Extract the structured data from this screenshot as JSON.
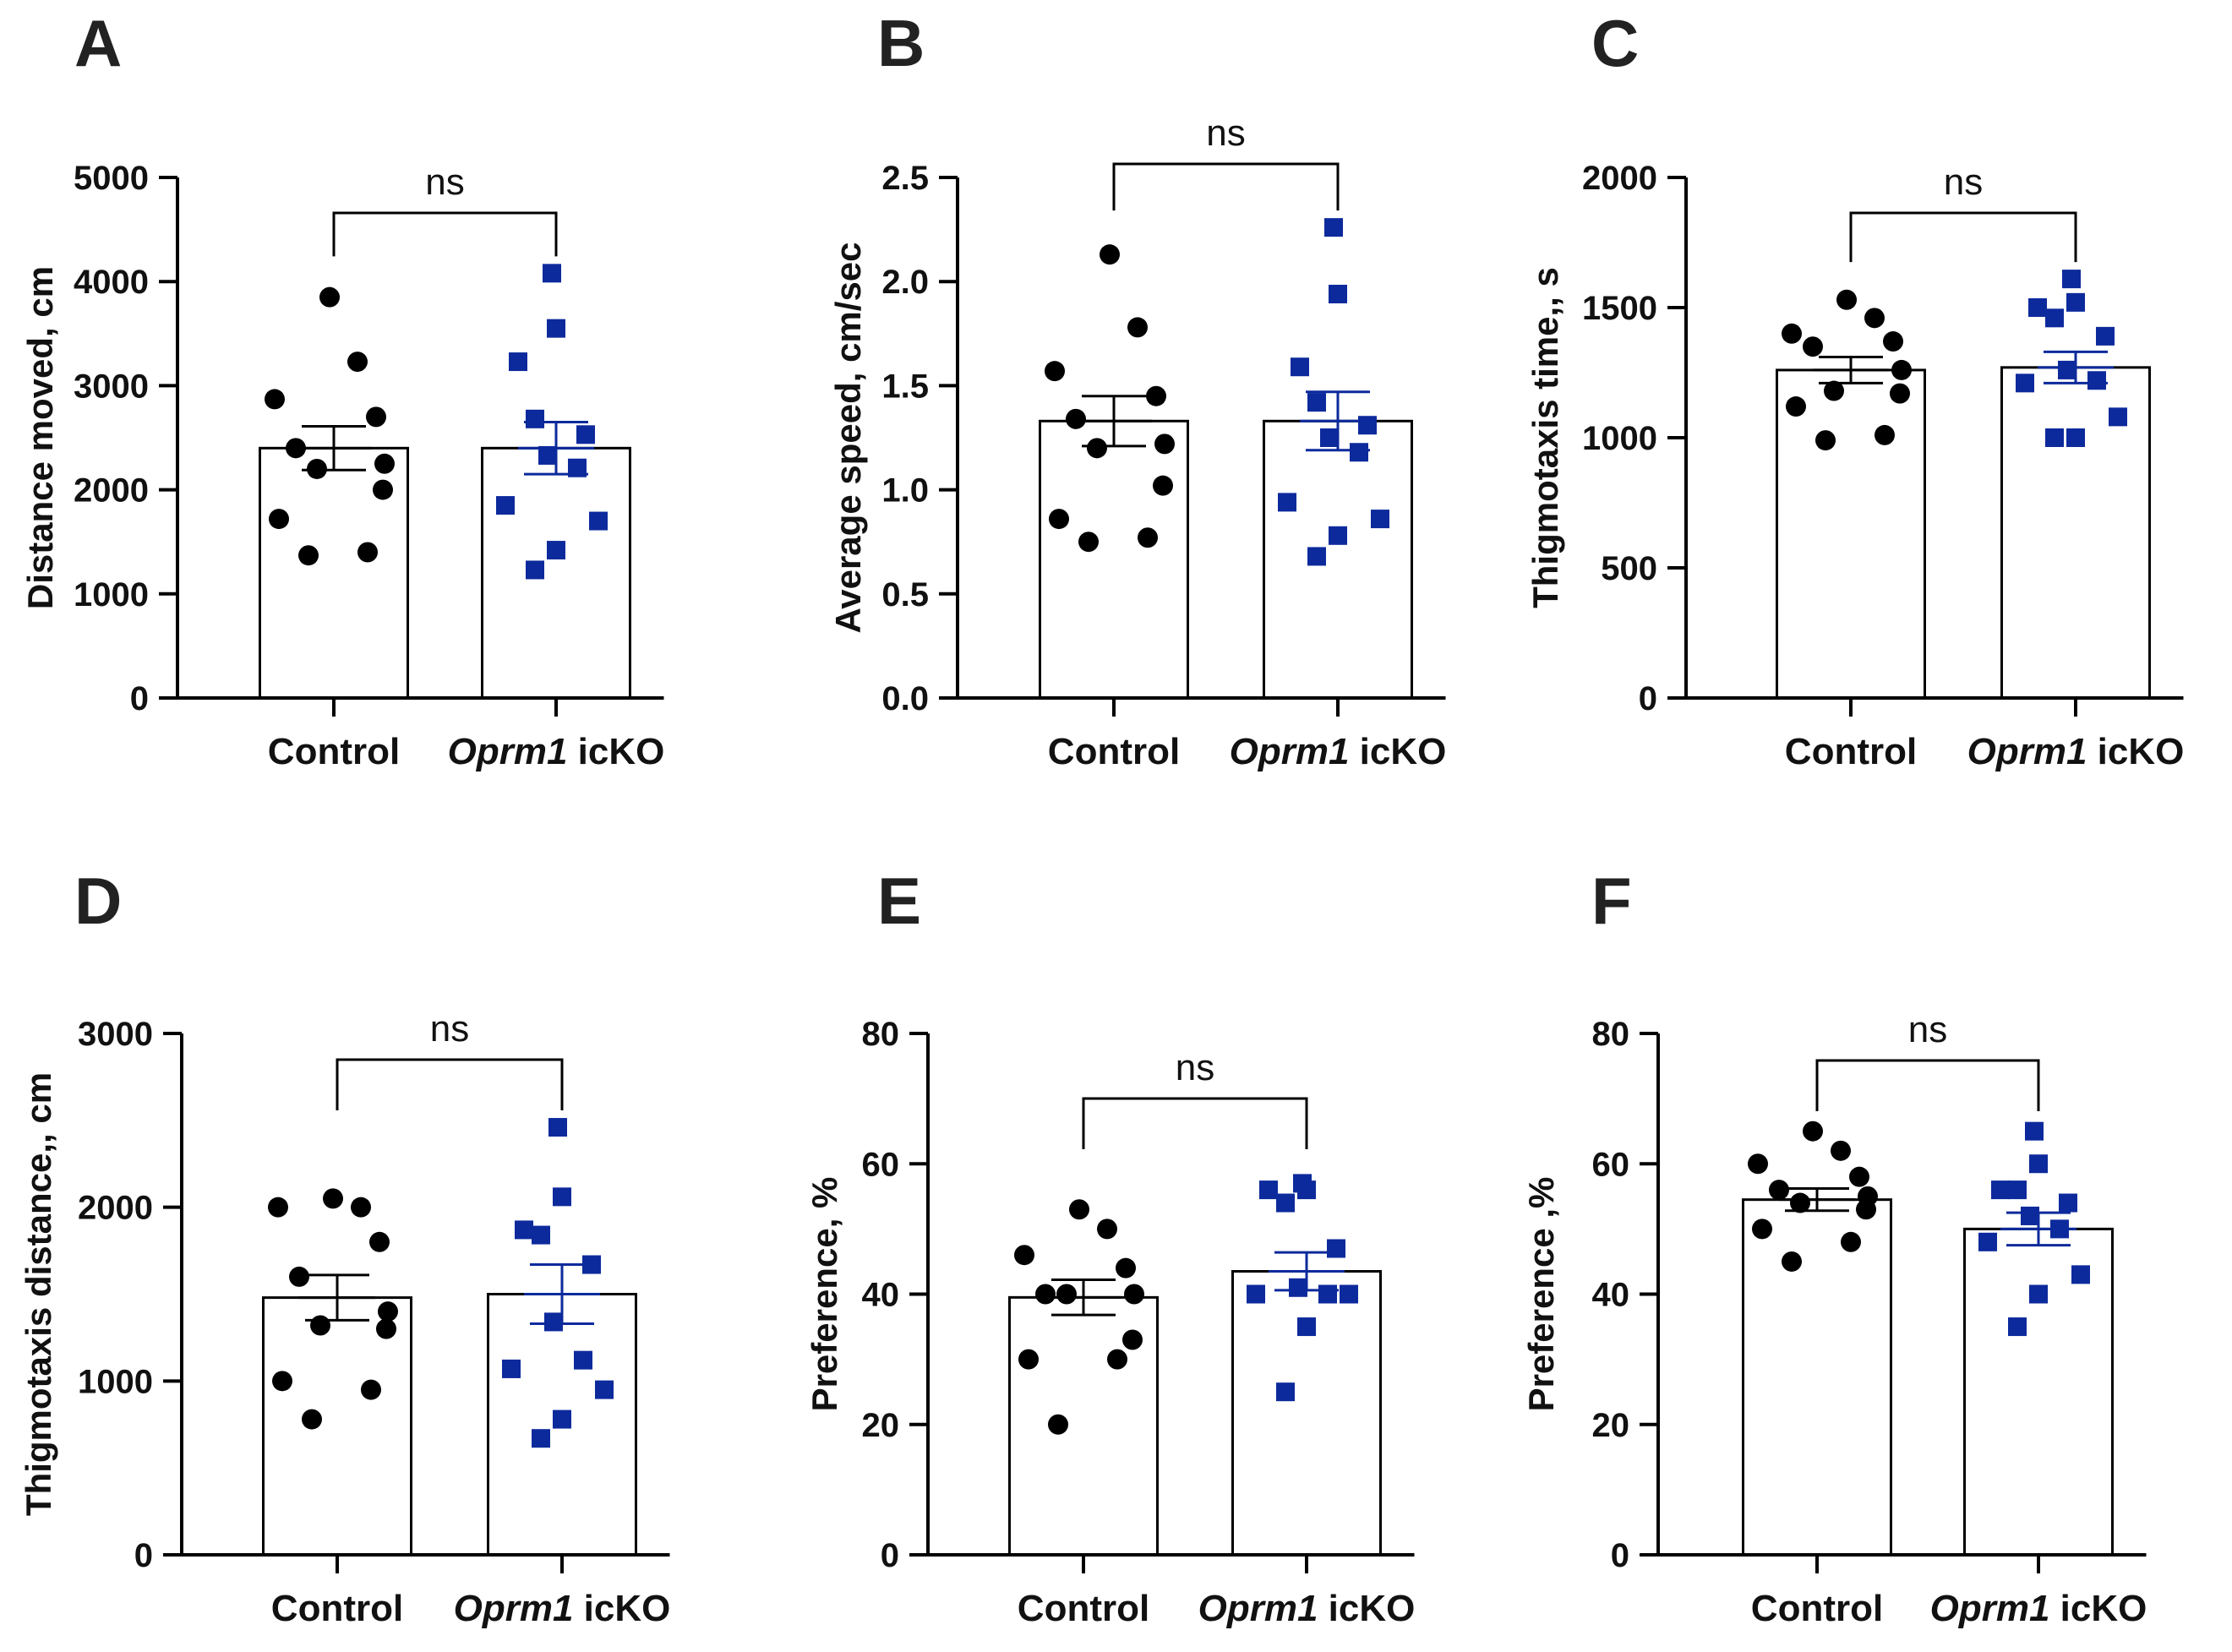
{
  "figure": {
    "panel_order": [
      "A",
      "B",
      "C",
      "D",
      "E",
      "F"
    ],
    "colors": {
      "control": "#000000",
      "icko": "#0d2a9c",
      "axis": "#000000",
      "bar_fill": "#ffffff"
    },
    "marker_shapes": {
      "control": "circle",
      "icko": "square"
    }
  },
  "chart_data": [
    {
      "panel_letter": "A",
      "type": "bar",
      "categories": [
        {
          "plain": "Control",
          "italic": "",
          "rest": ""
        },
        {
          "plain": "",
          "italic": "Oprm1",
          "rest": " icKO"
        }
      ],
      "ylabel": "Distance moved, cm",
      "ylim": [
        0,
        5000
      ],
      "yticks": [
        0,
        1000,
        2000,
        3000,
        4000,
        5000
      ],
      "ytick_labels": [
        "0",
        "1000",
        "2000",
        "3000",
        "4000",
        "5000"
      ],
      "means": [
        2400,
        2400
      ],
      "sem": [
        210,
        250
      ],
      "points": [
        [
          3850,
          3230,
          2870,
          2700,
          2400,
          2250,
          2200,
          2000,
          1720,
          1400,
          1370
        ],
        [
          4080,
          3550,
          3230,
          2680,
          2530,
          2330,
          2210,
          1850,
          1700,
          1420,
          1230
        ]
      ],
      "significance": {
        "label": "ns",
        "bracket_y": 4600
      }
    },
    {
      "panel_letter": "B",
      "type": "bar",
      "categories": [
        {
          "plain": "Control",
          "italic": "",
          "rest": ""
        },
        {
          "plain": "",
          "italic": "Oprm1",
          "rest": " icKO"
        }
      ],
      "ylabel": "Average speed, cm/sec",
      "ylim": [
        0,
        2.5
      ],
      "yticks": [
        0,
        0.5,
        1.0,
        1.5,
        2.0,
        2.5
      ],
      "ytick_labels": [
        "0.0",
        "0.5",
        "1.0",
        "1.5",
        "2.0",
        "2.5"
      ],
      "means": [
        1.33,
        1.33
      ],
      "sem": [
        0.12,
        0.14
      ],
      "points": [
        [
          2.13,
          1.78,
          1.57,
          1.45,
          1.34,
          1.22,
          1.2,
          1.02,
          0.86,
          0.77,
          0.75
        ],
        [
          2.26,
          1.94,
          1.59,
          1.42,
          1.31,
          1.25,
          1.18,
          0.94,
          0.86,
          0.78,
          0.68
        ]
      ],
      "significance": {
        "label": "ns",
        "bracket_y": 2.56
      }
    },
    {
      "panel_letter": "C",
      "type": "bar",
      "categories": [
        {
          "plain": "Control",
          "italic": "",
          "rest": ""
        },
        {
          "plain": "",
          "italic": "Oprm1",
          "rest": " icKO"
        }
      ],
      "ylabel": "Thigmotaxis time,, s",
      "ylim": [
        0,
        2000
      ],
      "yticks": [
        0,
        500,
        1000,
        1500,
        2000
      ],
      "ytick_labels": [
        "0",
        "500",
        "1000",
        "1500",
        "2000"
      ],
      "means": [
        1260,
        1270
      ],
      "sem": [
        50,
        60
      ],
      "points": [
        [
          1530,
          1460,
          1400,
          1370,
          1350,
          1260,
          1180,
          1170,
          1120,
          1010,
          990
        ],
        [
          1610,
          1520,
          1500,
          1460,
          1390,
          1260,
          1220,
          1210,
          1080,
          1000,
          1000
        ]
      ],
      "significance": {
        "label": "ns",
        "bracket_y": 1850
      }
    },
    {
      "panel_letter": "D",
      "type": "bar",
      "categories": [
        {
          "plain": "Control",
          "italic": "",
          "rest": ""
        },
        {
          "plain": "",
          "italic": "Oprm1",
          "rest": " icKO"
        }
      ],
      "ylabel": "Thigmotaxis distance,, cm",
      "ylim": [
        0,
        3000
      ],
      "yticks": [
        0,
        1000,
        2000,
        3000
      ],
      "ytick_labels": [
        "0",
        "1000",
        "2000",
        "3000"
      ],
      "means": [
        1480,
        1500
      ],
      "sem": [
        130,
        170
      ],
      "points": [
        [
          2050,
          2000,
          2000,
          1800,
          1600,
          1400,
          1320,
          1300,
          1000,
          950,
          780
        ],
        [
          2460,
          2060,
          1870,
          1840,
          1670,
          1340,
          1120,
          1070,
          950,
          780,
          670
        ]
      ],
      "significance": {
        "label": "ns",
        "bracket_y": 2850
      }
    },
    {
      "panel_letter": "E",
      "type": "bar",
      "categories": [
        {
          "plain": "Control",
          "italic": "",
          "rest": ""
        },
        {
          "plain": "",
          "italic": "Oprm1",
          "rest": " icKO"
        }
      ],
      "ylabel": "Preference, %",
      "ylim": [
        0,
        80
      ],
      "yticks": [
        0,
        20,
        40,
        60,
        80
      ],
      "ytick_labels": [
        "0",
        "20",
        "40",
        "60",
        "80"
      ],
      "means": [
        39.5,
        43.5
      ],
      "sem": [
        2.7,
        2.9
      ],
      "points": [
        [
          53,
          50,
          46,
          44,
          40,
          40,
          40,
          33,
          30,
          30,
          20
        ],
        [
          57,
          56,
          56,
          54,
          47,
          41,
          40,
          40,
          40,
          35,
          25
        ]
      ],
      "significance": {
        "label": "ns",
        "bracket_y": 67
      }
    },
    {
      "panel_letter": "F",
      "type": "bar",
      "categories": [
        {
          "plain": "Control",
          "italic": "",
          "rest": ""
        },
        {
          "plain": "",
          "italic": "Oprm1",
          "rest": " icKO"
        }
      ],
      "ylabel": "Preference ,%",
      "ylim": [
        0,
        80
      ],
      "yticks": [
        0,
        20,
        40,
        60,
        80
      ],
      "ytick_labels": [
        "0",
        "20",
        "40",
        "60",
        "80"
      ],
      "means": [
        54.5,
        50
      ],
      "sem": [
        1.7,
        2.5
      ],
      "points": [
        [
          65,
          62,
          60,
          58,
          56,
          55,
          54,
          53,
          50,
          48,
          45
        ],
        [
          65,
          60,
          56,
          56,
          54,
          52,
          50,
          48,
          43,
          40,
          35
        ]
      ],
      "significance": {
        "label": "ns",
        "bracket_y": 74
      }
    }
  ]
}
